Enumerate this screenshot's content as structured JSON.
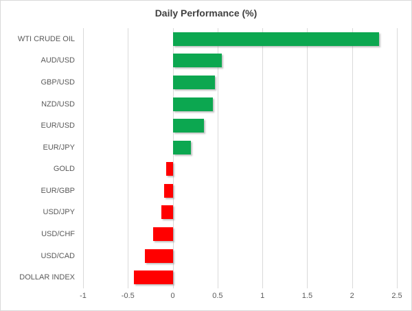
{
  "chart_data": {
    "type": "bar",
    "orientation": "horizontal",
    "title": "Daily Performance (%)",
    "categories": [
      "WTI CRUDE OIL",
      "AUD/USD",
      "GBP/USD",
      "NZD/USD",
      "EUR/USD",
      "EUR/JPY",
      "GOLD",
      "EUR/GBP",
      "USD/JPY",
      "USD/CHF",
      "USD/CAD",
      "DOLLAR INDEX"
    ],
    "values": [
      2.3,
      0.55,
      0.47,
      0.45,
      0.35,
      0.2,
      -0.07,
      -0.1,
      -0.13,
      -0.22,
      -0.31,
      -0.43
    ],
    "xlim": [
      -1,
      2.5
    ],
    "ticks": [
      -1,
      -0.5,
      0,
      0.5,
      1,
      1.5,
      2,
      2.5
    ],
    "tick_labels": [
      "-1",
      "-0.5",
      "0",
      "0.5",
      "1",
      "1.5",
      "2",
      "2.5"
    ],
    "xlabel": "",
    "ylabel": "",
    "grid": "vertical-only",
    "legend": "none",
    "colors": {
      "positive": "#0ca750",
      "negative": "#ff0000",
      "gridline": "#d9d9d9",
      "title_text": "#404040",
      "axis_text": "#595959",
      "background": "#ffffff",
      "border": "#d9d9d9"
    }
  }
}
